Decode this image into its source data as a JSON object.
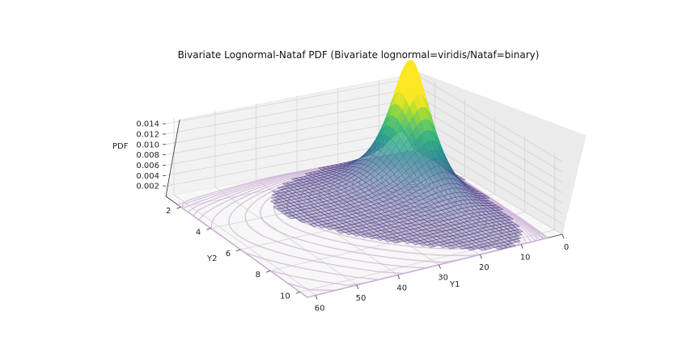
{
  "chart_data": {
    "type": "surface3d",
    "title": "Bivariate Lognormal-Nataf PDF (Bivariate lognormal=viridis/Nataf=binary)",
    "xlabel": "Y1",
    "ylabel": "Y2",
    "zlabel": "PDF",
    "x_ticks": [
      0,
      10,
      20,
      30,
      40,
      50,
      60
    ],
    "y_ticks": [
      2,
      4,
      6,
      8,
      10
    ],
    "z_ticks": [
      0.002,
      0.004,
      0.006,
      0.008,
      0.01,
      0.012,
      0.014
    ],
    "z_tick_labels": [
      "0.002",
      "0.004",
      "0.006",
      "0.008",
      "0.010",
      "0.012",
      "0.014"
    ],
    "xlim": [
      0,
      62
    ],
    "ylim": [
      1,
      10.5
    ],
    "zlim": [
      0,
      0.0148
    ],
    "peak": {
      "x": 10,
      "y": 3,
      "z": 0.0146
    },
    "surface_colormap": "viridis",
    "contour_colormap": "binary",
    "contour_color": "#c9b0d6",
    "grid": true
  }
}
